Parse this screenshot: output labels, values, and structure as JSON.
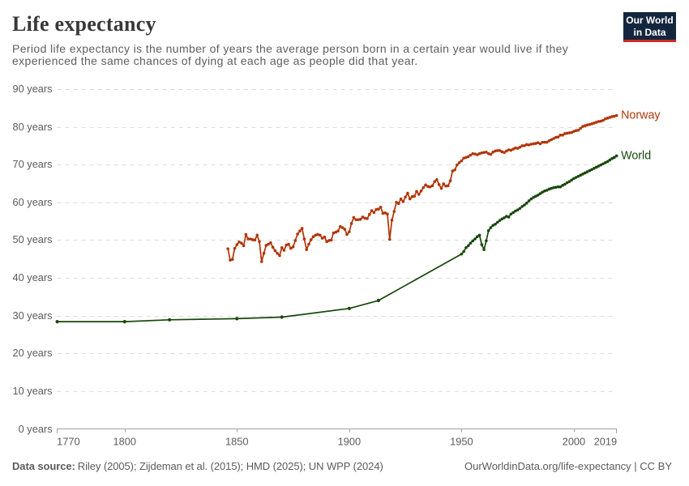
{
  "header": {
    "title": "Life expectancy",
    "subtitle_lines": [
      "Period life expectancy is the number of years the average person born in a certain year would live if they",
      "experienced the same chances of dying at each age as people did that year."
    ],
    "logo": {
      "line1": "Our World",
      "line2": "in Data",
      "bg_color": "#14263e",
      "accent_color": "#cf2a25"
    }
  },
  "footer": {
    "sources_label": "Data source:",
    "sources_text": "Riley (2005); Zijdeman et al. (2015); HMD (2025); UN WPP (2024)",
    "credit": "OurWorldinData.org/life-expectancy | CC BY"
  },
  "chart_data": {
    "type": "line",
    "title": "Life expectancy",
    "xlabel": "",
    "ylabel": "",
    "xlim": [
      1770,
      2019
    ],
    "ylim": [
      0,
      90
    ],
    "x_ticks": [
      1770,
      1800,
      1850,
      1900,
      1950,
      2000,
      2019
    ],
    "y_ticks": [
      0,
      10,
      20,
      30,
      40,
      50,
      60,
      70,
      80,
      90
    ],
    "y_tick_suffix": " years",
    "grid": "horizontal-dashed",
    "legend_position": "line-end-labels",
    "colors": {
      "grid": "#dcdcdc",
      "axis": "#a1a1a1",
      "tick_text": "#5b5b5b"
    },
    "series": [
      {
        "name": "Norway",
        "color": "#b13507",
        "points": [
          [
            1846,
            47.8
          ],
          [
            1847,
            44.8
          ],
          [
            1848,
            45
          ],
          [
            1849,
            47.9
          ],
          [
            1850,
            48.9
          ],
          [
            1851,
            49.6
          ],
          [
            1852,
            49.3
          ],
          [
            1853,
            48.6
          ],
          [
            1854,
            51.6
          ],
          [
            1855,
            50.4
          ],
          [
            1856,
            50.4
          ],
          [
            1857,
            50.2
          ],
          [
            1858,
            50.1
          ],
          [
            1859,
            51.4
          ],
          [
            1860,
            49.7
          ],
          [
            1861,
            44.4
          ],
          [
            1862,
            46.6
          ],
          [
            1863,
            48.7
          ],
          [
            1864,
            49
          ],
          [
            1865,
            49.4
          ],
          [
            1866,
            48.2
          ],
          [
            1867,
            47.3
          ],
          [
            1868,
            46.6
          ],
          [
            1869,
            46
          ],
          [
            1870,
            48.1
          ],
          [
            1871,
            47.4
          ],
          [
            1872,
            48.8
          ],
          [
            1873,
            49
          ],
          [
            1874,
            47.9
          ],
          [
            1875,
            48.3
          ],
          [
            1876,
            50
          ],
          [
            1877,
            51.7
          ],
          [
            1878,
            52.5
          ],
          [
            1879,
            53.2
          ],
          [
            1880,
            50.4
          ],
          [
            1881,
            47.6
          ],
          [
            1882,
            49
          ],
          [
            1883,
            50.2
          ],
          [
            1884,
            51
          ],
          [
            1885,
            51.4
          ],
          [
            1886,
            51.6
          ],
          [
            1887,
            51.4
          ],
          [
            1888,
            50.6
          ],
          [
            1889,
            50.9
          ],
          [
            1890,
            49.7
          ],
          [
            1891,
            50
          ],
          [
            1892,
            50.1
          ],
          [
            1893,
            52
          ],
          [
            1894,
            52.2
          ],
          [
            1895,
            52.5
          ],
          [
            1896,
            53.7
          ],
          [
            1897,
            53.4
          ],
          [
            1898,
            53
          ],
          [
            1899,
            51.6
          ],
          [
            1900,
            52.3
          ],
          [
            1901,
            54.5
          ],
          [
            1902,
            56.1
          ],
          [
            1903,
            55.5
          ],
          [
            1904,
            55.5
          ],
          [
            1905,
            55.6
          ],
          [
            1906,
            56.2
          ],
          [
            1907,
            55.9
          ],
          [
            1908,
            55.8
          ],
          [
            1909,
            56.9
          ],
          [
            1910,
            57.9
          ],
          [
            1911,
            57.4
          ],
          [
            1912,
            58.2
          ],
          [
            1913,
            58.3
          ],
          [
            1914,
            58.8
          ],
          [
            1915,
            57.2
          ],
          [
            1916,
            57.3
          ],
          [
            1917,
            57
          ],
          [
            1918,
            50.3
          ],
          [
            1919,
            55.4
          ],
          [
            1920,
            57.7
          ],
          [
            1921,
            60.1
          ],
          [
            1922,
            59.8
          ],
          [
            1923,
            61
          ],
          [
            1924,
            60.3
          ],
          [
            1925,
            61.5
          ],
          [
            1926,
            62.5
          ],
          [
            1927,
            61
          ],
          [
            1928,
            61.6
          ],
          [
            1929,
            61.7
          ],
          [
            1930,
            63
          ],
          [
            1931,
            62.2
          ],
          [
            1932,
            63.1
          ],
          [
            1933,
            64
          ],
          [
            1934,
            64.7
          ],
          [
            1935,
            64.3
          ],
          [
            1936,
            64.2
          ],
          [
            1937,
            64.5
          ],
          [
            1938,
            65.6
          ],
          [
            1939,
            66.1
          ],
          [
            1940,
            64.8
          ],
          [
            1941,
            63.8
          ],
          [
            1942,
            65
          ],
          [
            1943,
            64.4
          ],
          [
            1944,
            64.5
          ],
          [
            1945,
            65.8
          ],
          [
            1946,
            68.4
          ],
          [
            1947,
            68.7
          ],
          [
            1948,
            70
          ],
          [
            1949,
            70.6
          ],
          [
            1950,
            71.1
          ],
          [
            1951,
            71.8
          ],
          [
            1952,
            72
          ],
          [
            1953,
            72.2
          ],
          [
            1954,
            72.6
          ],
          [
            1955,
            73
          ],
          [
            1956,
            72.9
          ],
          [
            1957,
            72.7
          ],
          [
            1958,
            73
          ],
          [
            1959,
            73.2
          ],
          [
            1960,
            73.3
          ],
          [
            1961,
            73.4
          ],
          [
            1962,
            73
          ],
          [
            1963,
            72.8
          ],
          [
            1964,
            73.4
          ],
          [
            1965,
            73.7
          ],
          [
            1966,
            73.8
          ],
          [
            1967,
            73.8
          ],
          [
            1968,
            73.5
          ],
          [
            1969,
            73.3
          ],
          [
            1970,
            73.7
          ],
          [
            1971,
            74
          ],
          [
            1972,
            73.9
          ],
          [
            1973,
            74.2
          ],
          [
            1974,
            74.5
          ],
          [
            1975,
            74.4
          ],
          [
            1976,
            74.7
          ],
          [
            1977,
            75.1
          ],
          [
            1978,
            75.1
          ],
          [
            1979,
            75.4
          ],
          [
            1980,
            75.3
          ],
          [
            1981,
            75.5
          ],
          [
            1982,
            75.6
          ],
          [
            1983,
            75.7
          ],
          [
            1984,
            75.9
          ],
          [
            1985,
            75.6
          ],
          [
            1986,
            76
          ],
          [
            1987,
            76
          ],
          [
            1988,
            76
          ],
          [
            1989,
            76.4
          ],
          [
            1990,
            76.7
          ],
          [
            1991,
            77
          ],
          [
            1992,
            77.3
          ],
          [
            1993,
            77.4
          ],
          [
            1994,
            77.9
          ],
          [
            1995,
            77.9
          ],
          [
            1996,
            78.3
          ],
          [
            1997,
            78.4
          ],
          [
            1998,
            78.5
          ],
          [
            1999,
            78.6
          ],
          [
            2000,
            78.9
          ],
          [
            2001,
            79.1
          ],
          [
            2002,
            79.2
          ],
          [
            2003,
            79.7
          ],
          [
            2004,
            80.2
          ],
          [
            2005,
            80.4
          ],
          [
            2006,
            80.6
          ],
          [
            2007,
            80.7
          ],
          [
            2008,
            80.9
          ],
          [
            2009,
            81.1
          ],
          [
            2010,
            81.3
          ],
          [
            2011,
            81.5
          ],
          [
            2012,
            81.6
          ],
          [
            2013,
            81.8
          ],
          [
            2014,
            82.2
          ],
          [
            2015,
            82.4
          ],
          [
            2016,
            82.6
          ],
          [
            2017,
            82.8
          ],
          [
            2018,
            82.9
          ],
          [
            2019,
            83.1
          ]
        ]
      },
      {
        "name": "World",
        "color": "#18470b",
        "points": [
          [
            1770,
            28.5
          ],
          [
            1800,
            28.5
          ],
          [
            1820,
            29
          ],
          [
            1850,
            29.3
          ],
          [
            1870,
            29.7
          ],
          [
            1900,
            32
          ],
          [
            1913,
            34.1
          ],
          [
            1950,
            46.4
          ],
          [
            1951,
            47.1
          ],
          [
            1952,
            48.1
          ],
          [
            1953,
            48.6
          ],
          [
            1954,
            49.3
          ],
          [
            1955,
            49.9
          ],
          [
            1956,
            50.4
          ],
          [
            1957,
            51
          ],
          [
            1958,
            51.4
          ],
          [
            1959,
            48.9
          ],
          [
            1960,
            47.6
          ],
          [
            1961,
            49.9
          ],
          [
            1962,
            52.6
          ],
          [
            1963,
            53.4
          ],
          [
            1964,
            54
          ],
          [
            1965,
            54.3
          ],
          [
            1966,
            54.8
          ],
          [
            1967,
            55.3
          ],
          [
            1968,
            55.7
          ],
          [
            1969,
            56
          ],
          [
            1970,
            56.4
          ],
          [
            1971,
            56.2
          ],
          [
            1972,
            57
          ],
          [
            1973,
            57.4
          ],
          [
            1974,
            57.8
          ],
          [
            1975,
            58.1
          ],
          [
            1976,
            58.5
          ],
          [
            1977,
            59
          ],
          [
            1978,
            59.4
          ],
          [
            1979,
            59.9
          ],
          [
            1980,
            60.5
          ],
          [
            1981,
            61
          ],
          [
            1982,
            61.4
          ],
          [
            1983,
            61.7
          ],
          [
            1984,
            62
          ],
          [
            1985,
            62.4
          ],
          [
            1986,
            62.8
          ],
          [
            1987,
            63.1
          ],
          [
            1988,
            63.3
          ],
          [
            1989,
            63.6
          ],
          [
            1990,
            63.8
          ],
          [
            1991,
            64
          ],
          [
            1992,
            64.1
          ],
          [
            1993,
            64.2
          ],
          [
            1994,
            64.2
          ],
          [
            1995,
            64.6
          ],
          [
            1996,
            64.9
          ],
          [
            1997,
            65.3
          ],
          [
            1998,
            65.6
          ],
          [
            1999,
            66
          ],
          [
            2000,
            66.4
          ],
          [
            2001,
            66.7
          ],
          [
            2002,
            67
          ],
          [
            2003,
            67.3
          ],
          [
            2004,
            67.6
          ],
          [
            2005,
            67.9
          ],
          [
            2006,
            68.2
          ],
          [
            2007,
            68.5
          ],
          [
            2008,
            68.8
          ],
          [
            2009,
            69.1
          ],
          [
            2010,
            69.4
          ],
          [
            2011,
            69.7
          ],
          [
            2012,
            70
          ],
          [
            2013,
            70.3
          ],
          [
            2014,
            70.6
          ],
          [
            2015,
            70.9
          ],
          [
            2016,
            71.3
          ],
          [
            2017,
            71.7
          ],
          [
            2018,
            72
          ],
          [
            2019,
            72.4
          ]
        ]
      }
    ]
  }
}
